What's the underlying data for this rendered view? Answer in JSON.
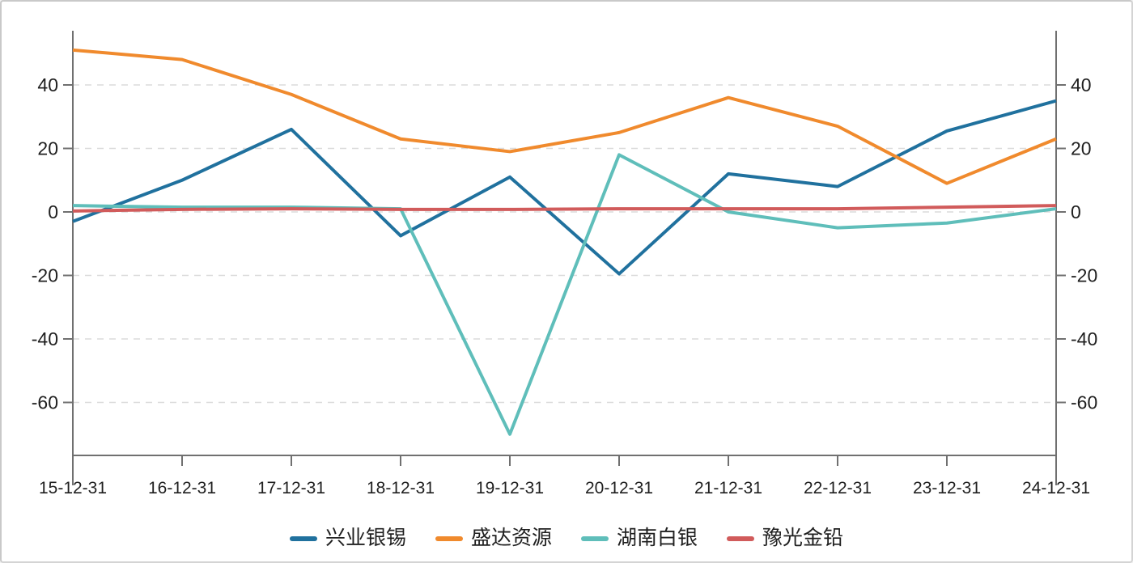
{
  "chart_data": {
    "type": "line",
    "title": "",
    "xlabel": "",
    "ylabel": "",
    "categories": [
      "15-12-31",
      "16-12-31",
      "17-12-31",
      "18-12-31",
      "19-12-31",
      "20-12-31",
      "21-12-31",
      "22-12-31",
      "23-12-31",
      "24-12-31"
    ],
    "series": [
      {
        "name": "兴业银锡",
        "color": "#20719E",
        "values": [
          -3,
          10,
          26,
          -7.5,
          11,
          -19.5,
          12,
          8,
          25.5,
          35
        ]
      },
      {
        "name": "盛达资源",
        "color": "#F08A2D",
        "values": [
          51,
          48,
          37,
          23,
          19,
          25,
          36,
          27,
          9,
          23
        ]
      },
      {
        "name": "湖南白银",
        "color": "#5FBEBA",
        "values": [
          2,
          1.5,
          1.5,
          1,
          -70,
          18,
          0,
          -5,
          -3.5,
          1
        ]
      },
      {
        "name": "豫光金铅",
        "color": "#D15B5B",
        "values": [
          0.3,
          0.8,
          1,
          0.8,
          0.8,
          1,
          1,
          1,
          1.5,
          2
        ]
      }
    ],
    "y_ticks": [
      40,
      20,
      0,
      -20,
      -40,
      -60
    ],
    "ylim": [
      -75,
      57
    ],
    "grid": "horizontal-dashed",
    "legend_position": "bottom",
    "dual_y_axis": true
  },
  "colors": {
    "axis": "#707070",
    "grid": "#dbdbdb",
    "tick_text": "#1f1f1f",
    "background": "#ffffff",
    "frame_border": "#c9c9c9"
  }
}
